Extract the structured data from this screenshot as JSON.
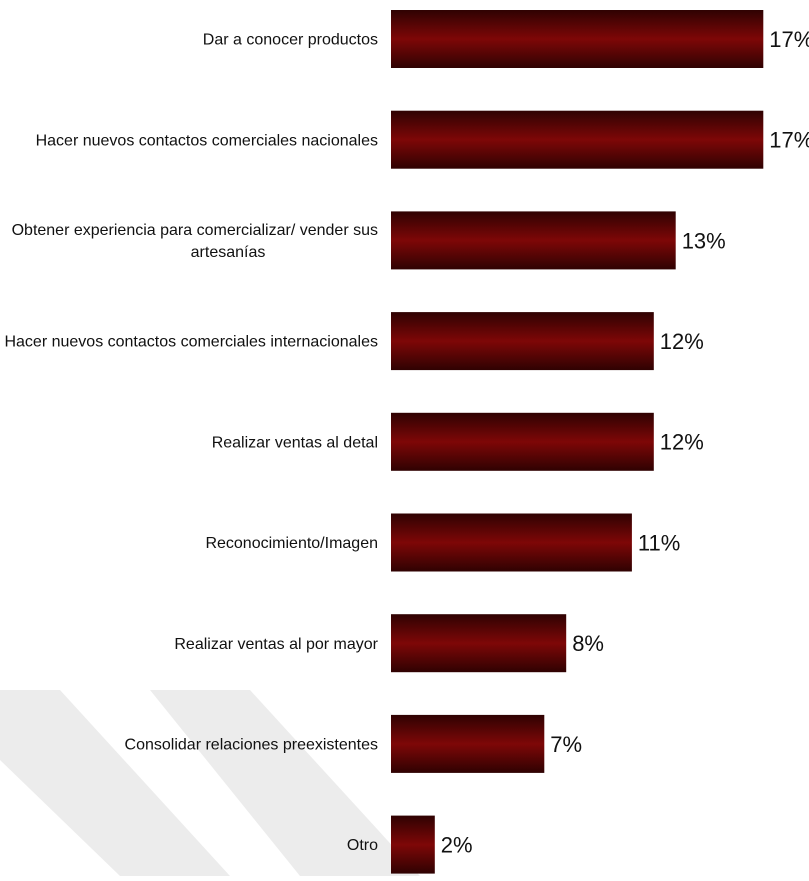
{
  "chart_data": {
    "type": "bar",
    "orientation": "horizontal",
    "categories": [
      "Dar a conocer productos",
      "Hacer nuevos contactos comerciales nacionales",
      "Obtener experiencia para comercializar/ vender sus artesanías",
      "Hacer nuevos contactos comerciales internacionales",
      "Realizar ventas al detal",
      "Reconocimiento/Imagen",
      "Realizar ventas al por mayor",
      "Consolidar relaciones preexistentes",
      "Otro"
    ],
    "category_lines": [
      [
        "Dar a conocer productos"
      ],
      [
        "Hacer nuevos contactos comerciales nacionales"
      ],
      [
        "Obtener experiencia para comercializar/ vender sus",
        "artesanías"
      ],
      [
        "Hacer nuevos contactos comerciales internacionales"
      ],
      [
        "Realizar ventas al detal"
      ],
      [
        "Reconocimiento/Imagen"
      ],
      [
        "Realizar ventas al por mayor"
      ],
      [
        "Consolidar relaciones preexistentes"
      ],
      [
        "Otro"
      ]
    ],
    "values": [
      17,
      17,
      13,
      12,
      12,
      11,
      8,
      7,
      2
    ],
    "value_labels": [
      "17%",
      "17%",
      "13%",
      "12%",
      "12%",
      "11%",
      "8%",
      "7%",
      "2%"
    ],
    "unit": "%",
    "grid": false,
    "legend": "none",
    "colors": {
      "bar_dark": "#3a0202",
      "bar_mid": "#7a0606",
      "label_text": "#111111",
      "watermark": "#e9e9e9"
    }
  }
}
